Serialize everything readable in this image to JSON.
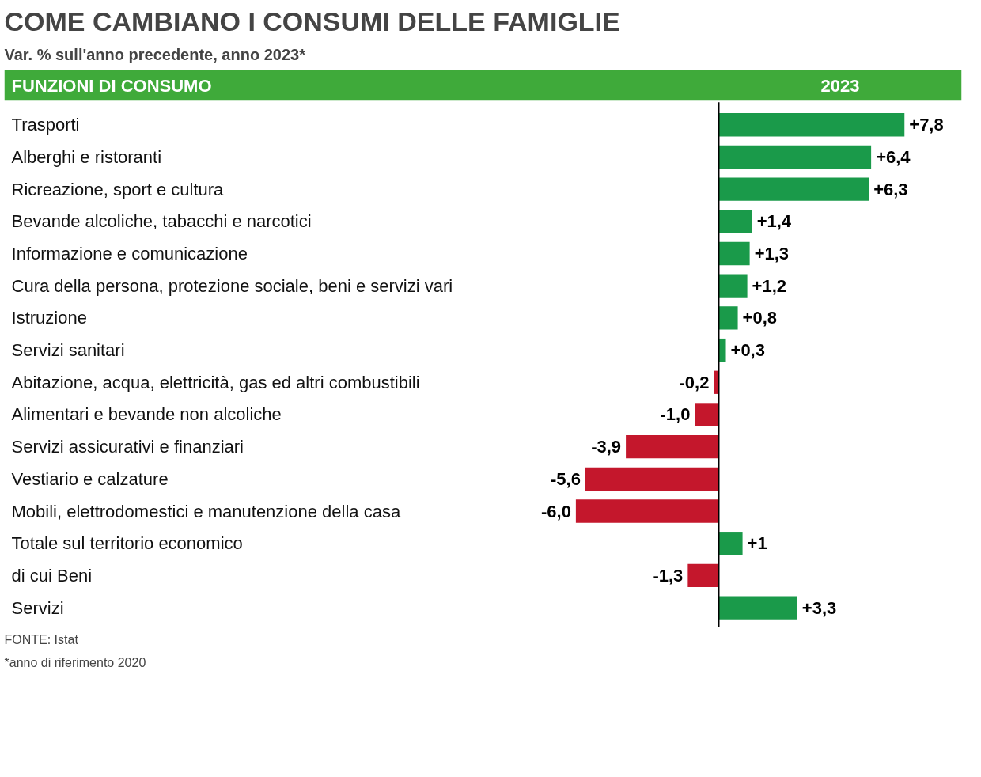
{
  "chart_data": {
    "type": "bar",
    "orientation": "horizontal",
    "title": "COME CAMBIANO I CONSUMI DELLE FAMIGLIE",
    "subtitle": "Var. % sull'anno precedente, anno 2023*",
    "ylabel": "FUNZIONI DI CONSUMO",
    "xlabel": "2023",
    "categories": [
      "Trasporti",
      "Alberghi e ristoranti",
      "Ricreazione, sport e cultura",
      "Bevande alcoliche, tabacchi e narcotici",
      "Informazione e comunicazione",
      "Cura della persona, protezione sociale, beni e servizi vari",
      "Istruzione",
      "Servizi sanitari",
      "Abitazione, acqua, elettricità, gas ed altri combustibili",
      "Alimentari e bevande non alcoliche",
      "Servizi assicurativi e finanziari",
      "Vestiario e calzature",
      "Mobili, elettrodomestici e manutenzione della casa",
      "Totale sul territorio economico",
      "di cui  Beni",
      "Servizi"
    ],
    "values": [
      7.8,
      6.4,
      6.3,
      1.4,
      1.3,
      1.2,
      0.8,
      0.3,
      -0.2,
      -1.0,
      -3.9,
      -5.6,
      -6.0,
      1,
      -1.3,
      3.3
    ],
    "colors": [
      "#1a9a4a",
      "#1a9a4a",
      "#1a9a4a",
      "#1a9a4a",
      "#1a9a4a",
      "#1a9a4a",
      "#1a9a4a",
      "#1a9a4a",
      "#c4172c",
      "#c4172c",
      "#c4172c",
      "#c4172c",
      "#c4172c",
      "#1a9a4a",
      "#c4172c",
      "#1a9a4a"
    ],
    "value_labels": [
      "+7,8",
      "+6,4",
      "+6,3",
      "+1,4",
      "+1,3",
      "+1,2",
      "+0,8",
      "+0,3",
      "-0,2",
      "-1,0",
      "-3,9",
      "-5,6",
      "-6,0",
      "+1",
      "-1,3",
      "+3,3"
    ],
    "annotations": [
      "FONTE: Istat",
      "*anno di riferimento 2020"
    ],
    "tick_labels": "y",
    "grid": false
  }
}
